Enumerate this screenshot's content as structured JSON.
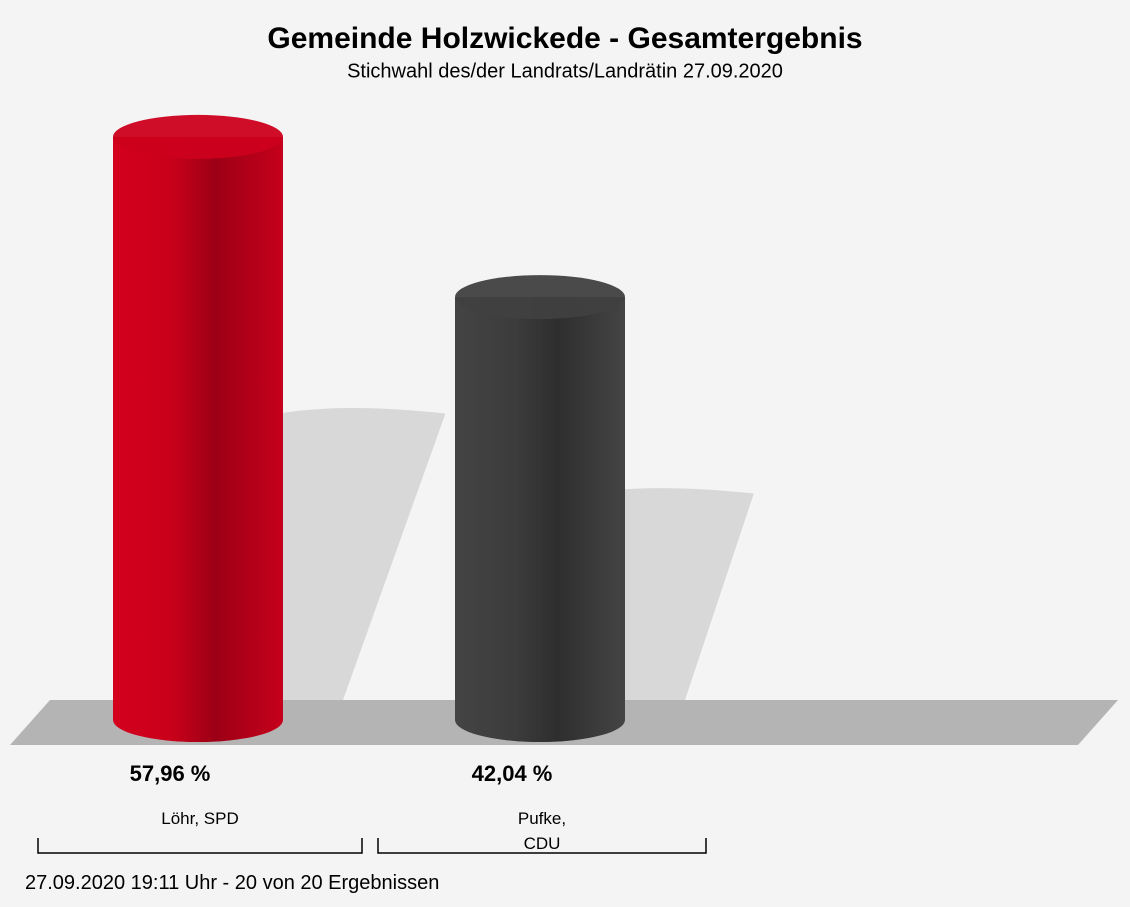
{
  "chart_data": {
    "type": "bar",
    "title": "Gemeinde Holzwickede - Gesamtergebnis",
    "subtitle": "Stichwahl des/der Landrats/Landrätin 27.09.2020",
    "categories": [
      "Löhr, SPD",
      "Pufke, CDU"
    ],
    "values": [
      57.96,
      42.04
    ],
    "value_labels": [
      "57,96 %",
      "42,04 %"
    ],
    "colors": [
      "#cc001c",
      "#404040"
    ],
    "footnote": "27.09.2020 19:11 Uhr - 20 von 20 Ergebnissen"
  }
}
